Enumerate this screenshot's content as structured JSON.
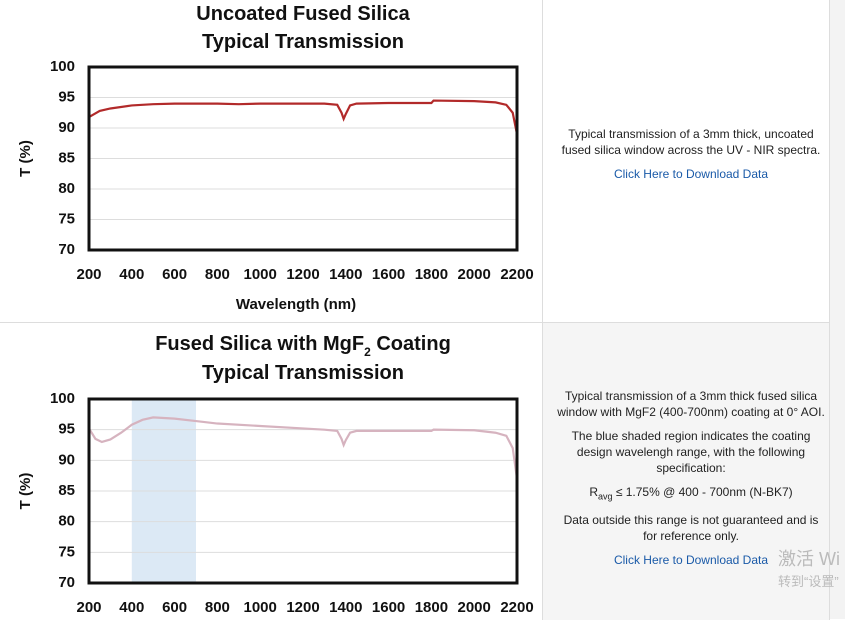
{
  "chart_data": [
    {
      "type": "line",
      "title": "Uncoated Fused Silica",
      "subtitle": "Typical Transmission",
      "ylabel": "T (%)",
      "xlabel": "Wavelength (nm)",
      "x": [
        200,
        250,
        300,
        400,
        500,
        600,
        800,
        900,
        1000,
        1200,
        1300,
        1360,
        1380,
        1390,
        1400,
        1420,
        1450,
        1600,
        1800,
        1810,
        2000,
        2100,
        2150,
        2180,
        2200
      ],
      "values": [
        91.8,
        92.8,
        93.2,
        93.7,
        93.9,
        94,
        94,
        93.9,
        94,
        94,
        94,
        93.8,
        92.5,
        91.5,
        92.3,
        93.7,
        94,
        94.1,
        94.1,
        94.5,
        94.4,
        94.2,
        93.8,
        92.5,
        89
      ],
      "color": "#b22a2a",
      "xlim": [
        200,
        2200
      ],
      "xticks": [
        200,
        400,
        600,
        800,
        1000,
        1200,
        1400,
        1600,
        1800,
        2000,
        2200
      ],
      "ylim": [
        70,
        100
      ],
      "yticks": [
        70,
        75,
        80,
        85,
        90,
        95,
        100
      ],
      "grid": true
    },
    {
      "type": "line",
      "title": "Fused Silica with MgF",
      "title_subscript": "2",
      "title_suffix": " Coating",
      "subtitle": "Typical Transmission",
      "ylabel": "T (%)",
      "x": [
        200,
        230,
        260,
        300,
        350,
        400,
        450,
        500,
        600,
        700,
        800,
        1000,
        1200,
        1300,
        1360,
        1380,
        1390,
        1400,
        1420,
        1450,
        1600,
        1800,
        1810,
        2000,
        2100,
        2150,
        2180,
        2200
      ],
      "values": [
        95.2,
        93.5,
        93,
        93.4,
        94.5,
        95.8,
        96.6,
        97,
        96.8,
        96.4,
        96,
        95.6,
        95.2,
        95,
        94.8,
        93.5,
        92.5,
        93.3,
        94.5,
        94.8,
        94.8,
        94.8,
        95,
        94.9,
        94.5,
        94,
        92,
        87
      ],
      "color": "#d6b3bf",
      "shaded_range": [
        400,
        700
      ],
      "shade_color": "#dce9f5",
      "xlim": [
        200,
        2200
      ],
      "xticks": [
        200,
        400,
        600,
        800,
        1000,
        1200,
        1400,
        1600,
        1800,
        2000,
        2200
      ],
      "ylim": [
        70,
        100
      ],
      "yticks": [
        70,
        75,
        80,
        85,
        90,
        95,
        100
      ],
      "grid": true
    }
  ],
  "panels": [
    {
      "text": "Typical transmission of a 3mm thick, uncoated fused silica window across the UV - NIR spectra.",
      "link": "Click Here to Download Data"
    },
    {
      "text": "Typical transmission of a 3mm thick fused silica window with MgF2 (400-700nm) coating at 0° AOI.",
      "text2": "The blue shaded region indicates the coating design wavelengh range, with the following specification:",
      "spec_symbol": "R",
      "spec_subscript": "avg",
      "spec_text": " ≤ 1.75% @ 400 - 700nm (N-BK7)",
      "note": "Data outside this range is not guaranteed and is for reference only.",
      "link": "Click Here to Download Data"
    }
  ],
  "watermark": [
    "激活 Wi",
    "转到“设置”"
  ]
}
